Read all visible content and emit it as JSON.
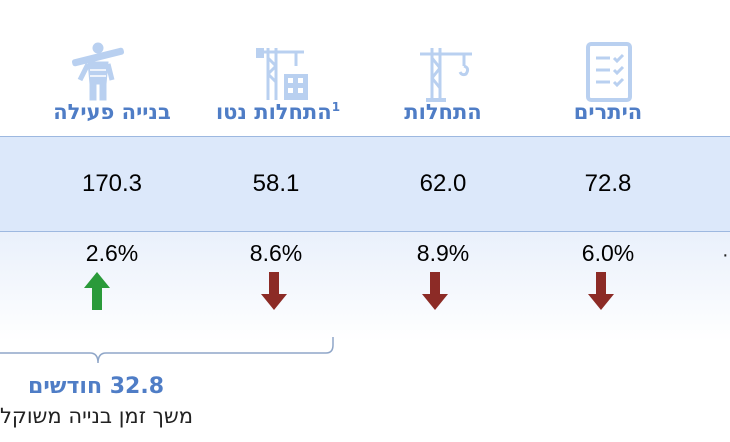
{
  "columns": [
    {
      "key": "active",
      "label": "בנייה פעילה",
      "value": "170.3",
      "change": "2.6%",
      "direction": "up",
      "icon": "construction-worker-icon"
    },
    {
      "key": "net_starts",
      "label": "התחלות נטו",
      "superscript": "1",
      "value": "58.1",
      "change": "8.6%",
      "direction": "down",
      "icon": "tower-crane-building-icon"
    },
    {
      "key": "starts",
      "label": "התחלות",
      "value": "62.0",
      "change": "8.9%",
      "direction": "down",
      "icon": "crane-icon"
    },
    {
      "key": "permits",
      "label": "היתרים",
      "value": "72.8",
      "change": "6.0%",
      "direction": "down",
      "icon": "checklist-icon"
    }
  ],
  "footer": {
    "duration": "32.8 חודשים",
    "caption": "משך זמן בנייה משוקל"
  },
  "colors": {
    "accent": "#4f7dc6",
    "icon": "#b9d0f0",
    "up": "#2a9a3a",
    "down": "#8c2b26",
    "band": "#dce8fa"
  }
}
